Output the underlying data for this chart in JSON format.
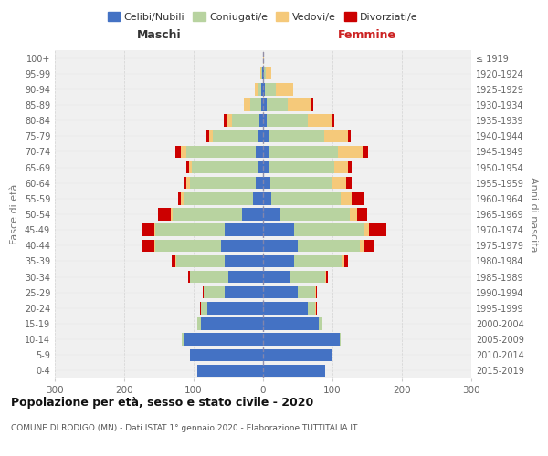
{
  "age_groups": [
    "0-4",
    "5-9",
    "10-14",
    "15-19",
    "20-24",
    "25-29",
    "30-34",
    "35-39",
    "40-44",
    "45-49",
    "50-54",
    "55-59",
    "60-64",
    "65-69",
    "70-74",
    "75-79",
    "80-84",
    "85-89",
    "90-94",
    "95-99",
    "100+"
  ],
  "birth_years": [
    "2015-2019",
    "2010-2014",
    "2005-2009",
    "2000-2004",
    "1995-1999",
    "1990-1994",
    "1985-1989",
    "1980-1984",
    "1975-1979",
    "1970-1974",
    "1965-1969",
    "1960-1964",
    "1955-1959",
    "1950-1954",
    "1945-1949",
    "1940-1944",
    "1935-1939",
    "1930-1934",
    "1925-1929",
    "1920-1924",
    "≤ 1919"
  ],
  "male": {
    "celibe": [
      95,
      105,
      115,
      90,
      80,
      55,
      50,
      55,
      60,
      55,
      30,
      15,
      10,
      8,
      10,
      8,
      5,
      3,
      2,
      1,
      0
    ],
    "coniugato": [
      0,
      0,
      2,
      5,
      10,
      30,
      55,
      70,
      95,
      100,
      100,
      100,
      95,
      95,
      100,
      65,
      40,
      15,
      5,
      1,
      0
    ],
    "vedovo": [
      0,
      0,
      0,
      0,
      0,
      0,
      0,
      1,
      2,
      2,
      3,
      3,
      5,
      3,
      8,
      5,
      8,
      10,
      5,
      2,
      0
    ],
    "divorziato": [
      0,
      0,
      0,
      0,
      1,
      2,
      3,
      5,
      18,
      18,
      18,
      5,
      5,
      5,
      8,
      3,
      3,
      0,
      0,
      0,
      0
    ]
  },
  "female": {
    "nubile": [
      90,
      100,
      110,
      80,
      65,
      50,
      40,
      45,
      50,
      45,
      25,
      12,
      10,
      8,
      8,
      8,
      5,
      5,
      3,
      1,
      0
    ],
    "coniugata": [
      0,
      0,
      2,
      5,
      10,
      25,
      50,
      70,
      90,
      100,
      100,
      100,
      90,
      95,
      100,
      80,
      60,
      30,
      15,
      3,
      0
    ],
    "vedova": [
      0,
      0,
      0,
      0,
      1,
      1,
      1,
      2,
      5,
      8,
      10,
      15,
      20,
      20,
      35,
      35,
      35,
      35,
      25,
      8,
      1
    ],
    "divorziata": [
      0,
      0,
      0,
      0,
      1,
      1,
      2,
      5,
      15,
      25,
      15,
      18,
      8,
      5,
      8,
      3,
      3,
      3,
      0,
      0,
      0
    ]
  },
  "color_celibe": "#4472c4",
  "color_coniugato": "#b8d3a0",
  "color_vedovo": "#f5c97a",
  "color_divorziato": "#cc0000",
  "bg_color": "#f0f0f0",
  "grid_color": "#cccccc",
  "title": "Popolazione per età, sesso e stato civile - 2020",
  "subtitle": "COMUNE DI RODIGO (MN) - Dati ISTAT 1° gennaio 2020 - Elaborazione TUTTITALIA.IT",
  "xlabel_left": "Maschi",
  "xlabel_right": "Femmine",
  "ylabel_left": "Fasce di età",
  "ylabel_right": "Anni di nascita",
  "xlim": 300,
  "legend_labels": [
    "Celibi/Nubili",
    "Coniugati/e",
    "Vedovi/e",
    "Divorziati/e"
  ]
}
